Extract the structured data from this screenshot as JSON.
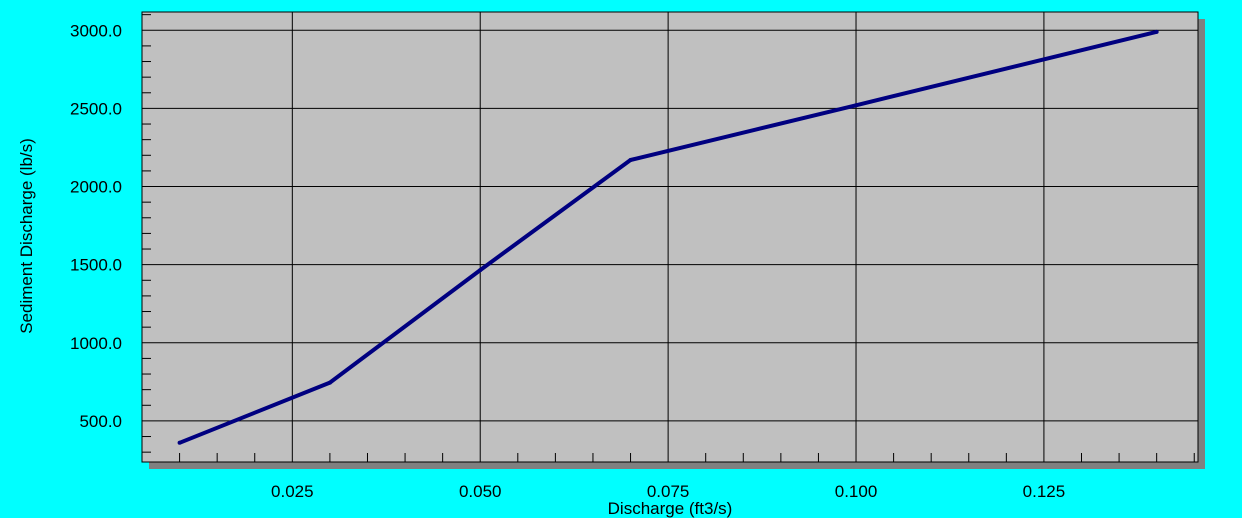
{
  "chart_data": {
    "type": "line",
    "title": "",
    "xlabel": "Discharge (ft3/s)",
    "ylabel": "Sediment Discharge (lb/s)",
    "xlim": [
      0.005,
      0.1455
    ],
    "ylim": [
      237,
      3117
    ],
    "x_ticks": [
      0.025,
      0.05,
      0.075,
      0.1,
      0.125
    ],
    "x_tick_labels": [
      "0.025",
      "0.050",
      "0.075",
      "0.100",
      "0.125"
    ],
    "y_ticks": [
      500,
      1000,
      1500,
      2000,
      2500,
      3000
    ],
    "y_tick_labels": [
      "500.0",
      "1000.0",
      "1500.0",
      "2000.0",
      "2500.0",
      "3000.0"
    ],
    "grid": true,
    "series": [
      {
        "x": [
          0.01,
          0.03,
          0.05,
          0.07,
          0.1,
          0.14
        ],
        "y": [
          360,
          745,
          1465,
          2170,
          2520,
          2990
        ]
      }
    ],
    "colors": {
      "background": "#00ffff",
      "plot_area": "#c0c0c0",
      "line": "#000080",
      "shadow": "#808080",
      "grid": "#000000"
    }
  }
}
